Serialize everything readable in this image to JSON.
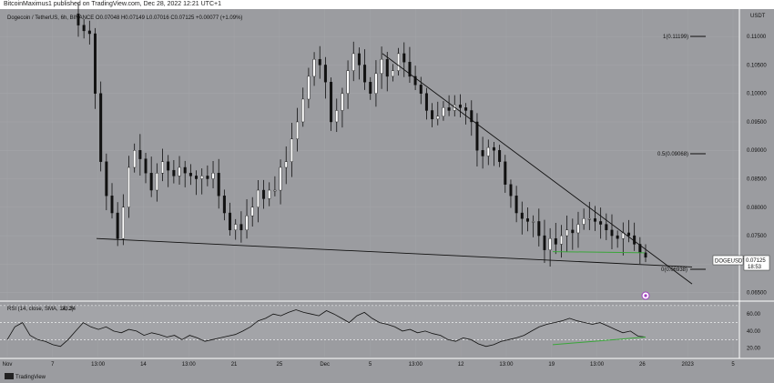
{
  "header": {
    "publish_text": "BitcoinMaximus1 published on TradingView.com, Dec 28, 2022 12:21 UTC+1"
  },
  "footer": {
    "brand": "TradingView"
  },
  "colors": {
    "background": "#9b9ca0",
    "candle": "#111111",
    "support": "#3aa63a",
    "rsi_line": "#111111"
  },
  "chart_data": {
    "type": "candlestick",
    "symbol_line": "Dogecoin / TetherUS, 6h, BINANCE   O0.07048  H0.07149  L0.07016  C0.07125  +0.00077 (+1.09%)",
    "currency": "USDT",
    "ylim": [
      0.0635,
      0.1145
    ],
    "y_ticks": [
      "0.11000",
      "0.10500",
      "0.10000",
      "0.09500",
      "0.09000",
      "0.08500",
      "0.08000",
      "0.07500",
      "0.07000",
      "0.06500"
    ],
    "x_ticks": [
      "Nov",
      "7",
      "13:00",
      "14",
      "13:00",
      "21",
      "25",
      "Dec",
      "5",
      "13:00",
      "12",
      "13:00",
      "19",
      "13:00",
      "26",
      "2023",
      "5"
    ],
    "fib": {
      "level1": "1(0.11199)",
      "level05": "0.5(0.09068)",
      "level0": "0(0.06938)"
    },
    "price_tag": {
      "symbol": "DOGEUSDT",
      "price": "0.07125",
      "countdown": "18:53"
    },
    "rsi": {
      "legend": "RSI (14, close, SMA, 14, 2)",
      "value": "33.34",
      "ylim": [
        10,
        72
      ],
      "ticks": [
        60,
        40,
        20
      ],
      "bands": [
        70,
        50,
        30
      ]
    },
    "price_path": [
      [
        0.112,
        0.111,
        0.1105,
        0.1,
        0.088,
        0.082,
        0.079,
        0.0745,
        0.08,
        0.087,
        0.09,
        0.0885,
        0.086,
        0.083
      ],
      [
        0.086,
        0.088,
        0.0865,
        0.0855,
        0.087,
        0.086,
        0.0855,
        0.085,
        0.0855,
        0.085,
        0.086
      ],
      [
        0.082,
        0.079,
        0.076,
        0.077,
        0.076,
        0.0785,
        0.08,
        0.083,
        0.0815,
        0.083,
        0.083
      ],
      [
        0.087,
        0.088,
        0.092,
        0.095,
        0.099,
        0.103,
        0.106,
        0.105,
        0.102,
        0.095,
        0.097
      ],
      [
        0.1,
        0.104,
        0.107,
        0.105,
        0.102,
        0.1,
        0.1035,
        0.106,
        0.103,
        0.104
      ],
      [
        0.107,
        0.1055,
        0.103,
        0.1015,
        0.1,
        0.097,
        0.0955,
        0.096,
        0.0975,
        0.097,
        0.098,
        0.0975
      ],
      [
        0.097,
        0.095,
        0.09,
        0.089,
        0.0905,
        0.09,
        0.088,
        0.084,
        0.082
      ],
      [
        0.079,
        0.078,
        0.0775,
        0.0775,
        0.075,
        0.0725,
        0.0745,
        0.0735,
        0.075,
        0.076,
        0.0755
      ],
      [
        0.077,
        0.078,
        0.078,
        0.0775,
        0.077,
        0.076,
        0.075,
        0.0745,
        0.0755,
        0.075,
        0.0735,
        0.072,
        0.0712
      ]
    ],
    "descending_resistance": [
      [
        0.107,
        0.071
      ]
    ],
    "horizontal_support": [
      [
        0.0745,
        0.0695
      ]
    ],
    "green_support": [
      0.0722,
      0.072
    ],
    "rsi_path": [
      [
        30,
        45,
        50,
        35,
        30,
        28,
        24,
        22,
        30,
        40,
        50,
        45,
        42
      ],
      [
        45,
        40,
        38,
        42,
        40,
        35,
        38,
        36,
        33,
        35,
        30
      ],
      [
        35,
        32,
        28,
        30,
        32,
        34,
        36,
        40,
        45,
        52,
        55,
        60,
        58,
        62,
        65
      ],
      [
        62,
        60,
        58,
        64,
        60,
        55,
        50,
        58,
        62,
        55,
        50,
        48,
        45,
        40,
        42,
        38,
        40,
        37
      ],
      [
        35,
        30,
        28,
        32,
        30,
        25,
        22,
        24,
        28,
        30
      ],
      [
        32,
        35,
        40,
        45,
        48,
        50,
        52,
        55,
        52,
        50,
        48,
        50,
        46,
        42,
        38,
        40,
        34,
        33
      ]
    ],
    "rsi_green": [
      24,
      33
    ]
  }
}
